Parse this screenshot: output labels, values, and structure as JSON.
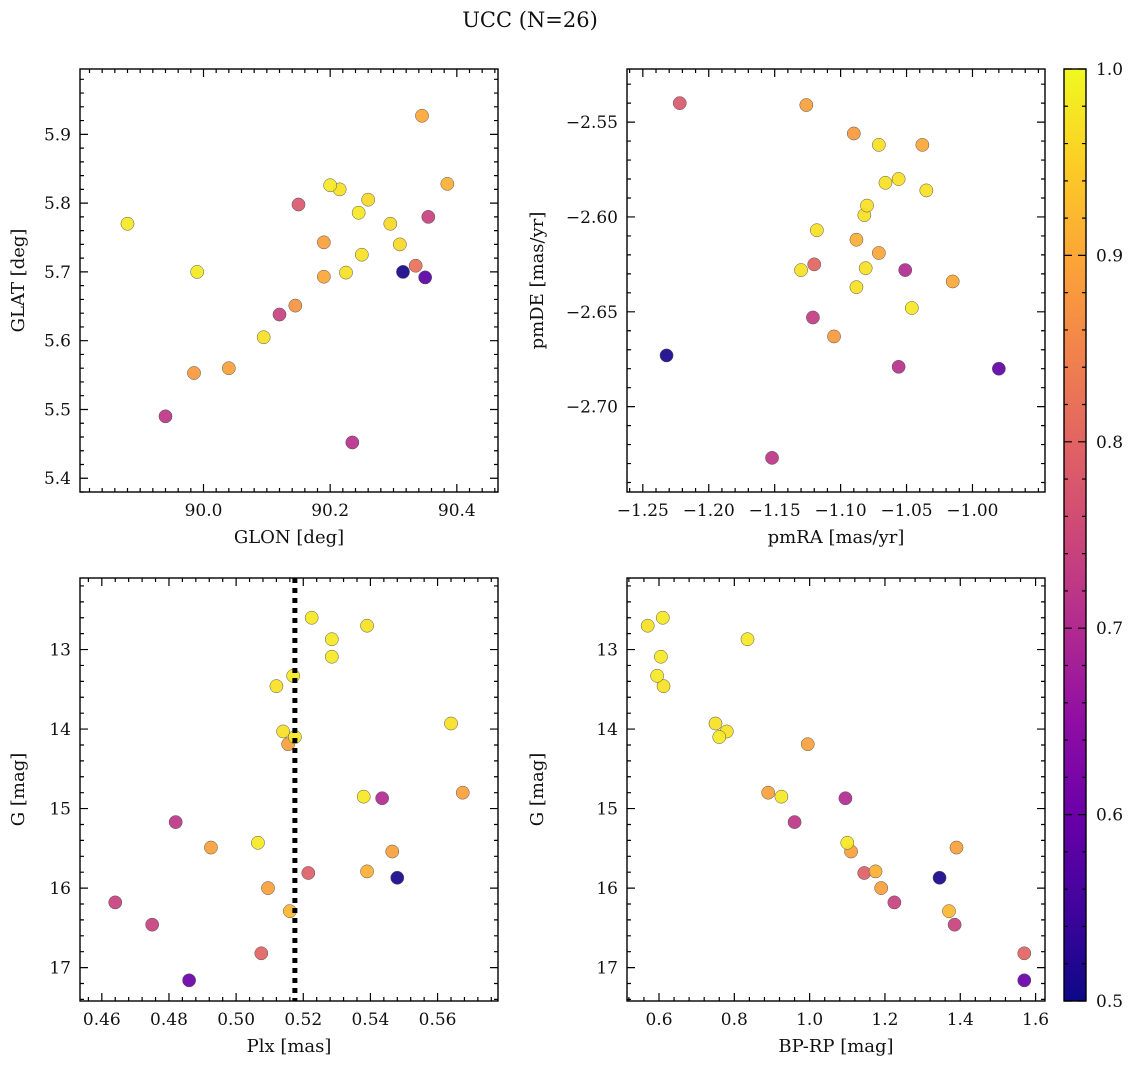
{
  "title": "UCC (N=26)",
  "chart_data": [
    {
      "type": "scatter",
      "panel": "top-left",
      "xlabel": "GLON [deg]",
      "ylabel": "GLAT [deg]",
      "xlim": [
        89.805,
        90.465
      ],
      "ylim": [
        5.38,
        5.995
      ],
      "xticks": [
        90.0,
        90.2,
        90.4
      ],
      "xticklabels": [
        "90.0",
        "90.2",
        "90.4"
      ],
      "yticks": [
        5.4,
        5.5,
        5.6,
        5.7,
        5.8,
        5.9
      ],
      "yticklabels": [
        "5.4",
        "5.5",
        "5.6",
        "5.7",
        "5.8",
        "5.9"
      ],
      "xminor": 0.02,
      "yminor": 0.02,
      "points": [
        {
          "x": 89.88,
          "y": 5.77,
          "c": 0.98
        },
        {
          "x": 89.94,
          "y": 5.49,
          "c": 0.72
        },
        {
          "x": 89.985,
          "y": 5.553,
          "c": 0.88
        },
        {
          "x": 89.99,
          "y": 5.7,
          "c": 0.98
        },
        {
          "x": 90.04,
          "y": 5.56,
          "c": 0.89
        },
        {
          "x": 90.095,
          "y": 5.605,
          "c": 0.97
        },
        {
          "x": 90.12,
          "y": 5.638,
          "c": 0.74
        },
        {
          "x": 90.145,
          "y": 5.651,
          "c": 0.87
        },
        {
          "x": 90.15,
          "y": 5.798,
          "c": 0.78
        },
        {
          "x": 90.19,
          "y": 5.743,
          "c": 0.89
        },
        {
          "x": 90.19,
          "y": 5.693,
          "c": 0.9
        },
        {
          "x": 90.2,
          "y": 5.826,
          "c": 0.98
        },
        {
          "x": 90.215,
          "y": 5.82,
          "c": 0.97
        },
        {
          "x": 90.225,
          "y": 5.699,
          "c": 0.97
        },
        {
          "x": 90.235,
          "y": 5.452,
          "c": 0.71
        },
        {
          "x": 90.245,
          "y": 5.786,
          "c": 0.98
        },
        {
          "x": 90.25,
          "y": 5.725,
          "c": 0.97
        },
        {
          "x": 90.26,
          "y": 5.805,
          "c": 0.96
        },
        {
          "x": 90.295,
          "y": 5.77,
          "c": 0.96
        },
        {
          "x": 90.31,
          "y": 5.74,
          "c": 0.96
        },
        {
          "x": 90.315,
          "y": 5.7,
          "c": 0.51
        },
        {
          "x": 90.335,
          "y": 5.709,
          "c": 0.82
        },
        {
          "x": 90.345,
          "y": 5.927,
          "c": 0.9
        },
        {
          "x": 90.35,
          "y": 5.692,
          "c": 0.58
        },
        {
          "x": 90.355,
          "y": 5.78,
          "c": 0.74
        },
        {
          "x": 90.385,
          "y": 5.828,
          "c": 0.91
        }
      ]
    },
    {
      "type": "scatter",
      "panel": "top-right",
      "xlabel": "pmRA [mas/yr]",
      "ylabel": "pmDE [mas/yr]",
      "xlim": [
        -1.262,
        -0.945
      ],
      "ylim": [
        -2.745,
        -2.522
      ],
      "xticks": [
        -1.25,
        -1.2,
        -1.15,
        -1.1,
        -1.05,
        -1.0
      ],
      "xticklabels": [
        "−1.25",
        "−1.20",
        "−1.15",
        "−1.10",
        "−1.05",
        "−1.00"
      ],
      "yticks": [
        -2.7,
        -2.65,
        -2.6,
        -2.55
      ],
      "yticklabels": [
        "−2.70",
        "−2.65",
        "−2.60",
        "−2.55"
      ],
      "xminor": 0.01,
      "yminor": 0.01,
      "points": [
        {
          "x": -1.232,
          "y": -2.673,
          "c": 0.51
        },
        {
          "x": -1.222,
          "y": -2.54,
          "c": 0.78
        },
        {
          "x": -1.152,
          "y": -2.727,
          "c": 0.72
        },
        {
          "x": -1.13,
          "y": -2.628,
          "c": 0.97
        },
        {
          "x": -1.126,
          "y": -2.541,
          "c": 0.89
        },
        {
          "x": -1.121,
          "y": -2.653,
          "c": 0.73
        },
        {
          "x": -1.12,
          "y": -2.625,
          "c": 0.8
        },
        {
          "x": -1.118,
          "y": -2.607,
          "c": 0.97
        },
        {
          "x": -1.105,
          "y": -2.663,
          "c": 0.88
        },
        {
          "x": -1.09,
          "y": -2.556,
          "c": 0.88
        },
        {
          "x": -1.088,
          "y": -2.612,
          "c": 0.91
        },
        {
          "x": -1.088,
          "y": -2.637,
          "c": 0.97
        },
        {
          "x": -1.082,
          "y": -2.599,
          "c": 0.97
        },
        {
          "x": -1.081,
          "y": -2.627,
          "c": 0.97
        },
        {
          "x": -1.08,
          "y": -2.594,
          "c": 0.97
        },
        {
          "x": -1.071,
          "y": -2.562,
          "c": 0.97
        },
        {
          "x": -1.071,
          "y": -2.619,
          "c": 0.9
        },
        {
          "x": -1.066,
          "y": -2.582,
          "c": 0.97
        },
        {
          "x": -1.056,
          "y": -2.58,
          "c": 0.97
        },
        {
          "x": -1.056,
          "y": -2.679,
          "c": 0.71
        },
        {
          "x": -1.051,
          "y": -2.628,
          "c": 0.7
        },
        {
          "x": -1.046,
          "y": -2.648,
          "c": 0.98
        },
        {
          "x": -1.038,
          "y": -2.562,
          "c": 0.9
        },
        {
          "x": -1.035,
          "y": -2.586,
          "c": 0.97
        },
        {
          "x": -1.015,
          "y": -2.634,
          "c": 0.9
        },
        {
          "x": -0.98,
          "y": -2.68,
          "c": 0.59
        }
      ]
    },
    {
      "type": "scatter",
      "panel": "bottom-left",
      "xlabel": "Plx [mas]",
      "ylabel": "G [mag]",
      "xlim": [
        0.4535,
        0.578
      ],
      "ylim": [
        17.42,
        12.1
      ],
      "y_inverted": true,
      "xticks": [
        0.46,
        0.48,
        0.5,
        0.52,
        0.54,
        0.56
      ],
      "xticklabels": [
        "0.46",
        "0.48",
        "0.50",
        "0.52",
        "0.54",
        "0.56"
      ],
      "yticks": [
        13,
        14,
        15,
        16,
        17
      ],
      "yticklabels": [
        "13",
        "14",
        "15",
        "16",
        "17"
      ],
      "xminor": 0.004,
      "yminor": 0.2,
      "vline": 0.5175,
      "points": [
        {
          "x": 0.464,
          "y": 16.18,
          "c": 0.74
        },
        {
          "x": 0.475,
          "y": 16.46,
          "c": 0.74
        },
        {
          "x": 0.482,
          "y": 15.17,
          "c": 0.72
        },
        {
          "x": 0.486,
          "y": 17.16,
          "c": 0.6
        },
        {
          "x": 0.4925,
          "y": 15.49,
          "c": 0.89
        },
        {
          "x": 0.5065,
          "y": 15.43,
          "c": 0.98
        },
        {
          "x": 0.5075,
          "y": 16.82,
          "c": 0.8
        },
        {
          "x": 0.5095,
          "y": 16.0,
          "c": 0.89
        },
        {
          "x": 0.512,
          "y": 13.46,
          "c": 0.97
        },
        {
          "x": 0.514,
          "y": 14.03,
          "c": 0.97
        },
        {
          "x": 0.5155,
          "y": 14.19,
          "c": 0.89
        },
        {
          "x": 0.516,
          "y": 16.29,
          "c": 0.92
        },
        {
          "x": 0.517,
          "y": 13.33,
          "c": 0.98
        },
        {
          "x": 0.5175,
          "y": 14.1,
          "c": 0.98
        },
        {
          "x": 0.5215,
          "y": 15.81,
          "c": 0.79
        },
        {
          "x": 0.5225,
          "y": 12.6,
          "c": 0.98
        },
        {
          "x": 0.5285,
          "y": 12.87,
          "c": 0.98
        },
        {
          "x": 0.5285,
          "y": 13.09,
          "c": 0.98
        },
        {
          "x": 0.538,
          "y": 14.85,
          "c": 0.98
        },
        {
          "x": 0.539,
          "y": 12.7,
          "c": 0.97
        },
        {
          "x": 0.539,
          "y": 15.79,
          "c": 0.91
        },
        {
          "x": 0.5435,
          "y": 14.87,
          "c": 0.7
        },
        {
          "x": 0.5465,
          "y": 15.54,
          "c": 0.89
        },
        {
          "x": 0.548,
          "y": 15.87,
          "c": 0.51
        },
        {
          "x": 0.564,
          "y": 13.93,
          "c": 0.97
        },
        {
          "x": 0.5675,
          "y": 14.8,
          "c": 0.89
        }
      ]
    },
    {
      "type": "scatter",
      "panel": "bottom-right",
      "xlabel": "BP-RP [mag]",
      "ylabel": "G [mag]",
      "xlim": [
        0.515,
        1.625
      ],
      "ylim": [
        17.42,
        12.1
      ],
      "y_inverted": true,
      "xticks": [
        0.6,
        0.8,
        1.0,
        1.2,
        1.4,
        1.6
      ],
      "xticklabels": [
        "0.6",
        "0.8",
        "1.0",
        "1.2",
        "1.4",
        "1.6"
      ],
      "yticks": [
        13,
        14,
        15,
        16,
        17
      ],
      "yticklabels": [
        "13",
        "14",
        "15",
        "16",
        "17"
      ],
      "xminor": 0.04,
      "yminor": 0.2,
      "points": [
        {
          "x": 0.57,
          "y": 12.7,
          "c": 0.97
        },
        {
          "x": 0.595,
          "y": 13.33,
          "c": 0.98
        },
        {
          "x": 0.605,
          "y": 13.09,
          "c": 0.98
        },
        {
          "x": 0.61,
          "y": 12.6,
          "c": 0.98
        },
        {
          "x": 0.612,
          "y": 13.46,
          "c": 0.97
        },
        {
          "x": 0.75,
          "y": 13.93,
          "c": 0.97
        },
        {
          "x": 0.76,
          "y": 14.1,
          "c": 0.98
        },
        {
          "x": 0.78,
          "y": 14.03,
          "c": 0.97
        },
        {
          "x": 0.835,
          "y": 12.87,
          "c": 0.98
        },
        {
          "x": 0.89,
          "y": 14.8,
          "c": 0.89
        },
        {
          "x": 0.925,
          "y": 14.85,
          "c": 0.98
        },
        {
          "x": 0.96,
          "y": 15.17,
          "c": 0.72
        },
        {
          "x": 0.995,
          "y": 14.19,
          "c": 0.89
        },
        {
          "x": 1.095,
          "y": 14.87,
          "c": 0.7
        },
        {
          "x": 1.1,
          "y": 15.43,
          "c": 0.98
        },
        {
          "x": 1.11,
          "y": 15.54,
          "c": 0.89
        },
        {
          "x": 1.145,
          "y": 15.81,
          "c": 0.79
        },
        {
          "x": 1.175,
          "y": 15.79,
          "c": 0.91
        },
        {
          "x": 1.19,
          "y": 16.0,
          "c": 0.89
        },
        {
          "x": 1.225,
          "y": 16.18,
          "c": 0.74
        },
        {
          "x": 1.345,
          "y": 15.87,
          "c": 0.51
        },
        {
          "x": 1.37,
          "y": 16.29,
          "c": 0.92
        },
        {
          "x": 1.385,
          "y": 16.46,
          "c": 0.74
        },
        {
          "x": 1.39,
          "y": 15.49,
          "c": 0.89
        },
        {
          "x": 1.57,
          "y": 16.82,
          "c": 0.8
        },
        {
          "x": 1.57,
          "y": 17.16,
          "c": 0.6
        }
      ]
    }
  ],
  "colorbar": {
    "colormap": "plasma",
    "range": [
      0.5,
      1.0
    ],
    "ticks": [
      0.5,
      0.6,
      0.7,
      0.8,
      0.9,
      1.0
    ],
    "ticklabels": [
      "0.5",
      "0.6",
      "0.7",
      "0.8",
      "0.9",
      "1.0"
    ],
    "minor": 0.02
  }
}
